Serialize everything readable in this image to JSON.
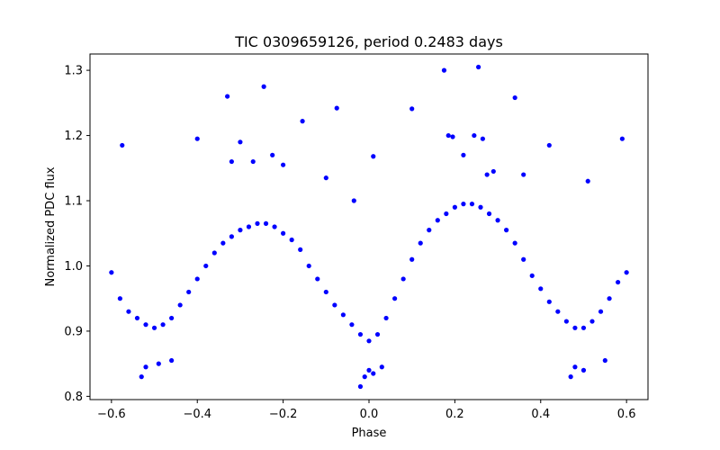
{
  "chart_data": {
    "type": "scatter",
    "title": "TIC 0309659126, period 0.2483 days",
    "xlabel": "Phase",
    "ylabel": "Normalized PDC flux",
    "xlim": [
      -0.65,
      0.65
    ],
    "ylim": [
      0.795,
      1.325
    ],
    "xticks": [
      -0.6,
      -0.4,
      -0.2,
      0.0,
      0.2,
      0.4,
      0.6
    ],
    "xtick_labels": [
      "−0.6",
      "−0.4",
      "−0.2",
      "0.0",
      "0.2",
      "0.4",
      "0.6"
    ],
    "yticks": [
      0.8,
      0.9,
      1.0,
      1.1,
      1.2,
      1.3
    ],
    "ytick_labels": [
      "0.8",
      "0.9",
      "1.0",
      "1.1",
      "1.2",
      "1.3"
    ],
    "grid": false,
    "legend": "none",
    "marker_color": "#0000ff",
    "series": [
      {
        "x": [
          -0.6,
          -0.58,
          -0.56,
          -0.54,
          -0.52,
          -0.5,
          -0.48,
          -0.46,
          -0.44,
          -0.42,
          -0.4,
          -0.38,
          -0.36,
          -0.34,
          -0.32,
          -0.3,
          -0.28,
          -0.26,
          -0.24,
          -0.22,
          -0.2,
          -0.18,
          -0.16,
          -0.14,
          -0.12,
          -0.1,
          -0.08,
          -0.06,
          -0.04,
          -0.02,
          0.0,
          0.02,
          0.04,
          0.06,
          0.08,
          0.1,
          0.12,
          0.14,
          0.16,
          0.18,
          0.2,
          0.22,
          0.24,
          0.26,
          0.28,
          0.3,
          0.32,
          0.34,
          0.36,
          0.38,
          0.4,
          0.42,
          0.44,
          0.46,
          0.48,
          0.5,
          0.52,
          0.54,
          0.56,
          0.58,
          0.6
        ],
        "y": [
          0.99,
          0.95,
          0.93,
          0.92,
          0.91,
          0.905,
          0.91,
          0.92,
          0.94,
          0.96,
          0.98,
          1.0,
          1.02,
          1.035,
          1.045,
          1.055,
          1.06,
          1.065,
          1.065,
          1.06,
          1.05,
          1.04,
          1.025,
          1.0,
          0.98,
          0.96,
          0.94,
          0.925,
          0.91,
          0.895,
          0.885,
          0.895,
          0.92,
          0.95,
          0.98,
          1.01,
          1.035,
          1.055,
          1.07,
          1.08,
          1.09,
          1.095,
          1.095,
          1.09,
          1.08,
          1.07,
          1.055,
          1.035,
          1.01,
          0.985,
          0.965,
          0.945,
          0.93,
          0.915,
          0.905,
          0.905,
          0.915,
          0.93,
          0.95,
          0.975,
          0.99
        ]
      },
      {
        "x": [
          -0.575,
          -0.4,
          -0.33,
          -0.32,
          -0.3,
          -0.27,
          -0.245,
          -0.225,
          -0.2,
          -0.155,
          -0.1,
          -0.075,
          -0.035,
          0.01,
          0.1,
          0.175,
          0.185,
          0.195,
          0.22,
          0.245,
          0.255,
          0.265,
          0.275,
          0.29,
          0.34,
          0.36,
          0.42,
          0.51,
          0.59
        ],
        "y": [
          1.185,
          1.195,
          1.26,
          1.16,
          1.19,
          1.16,
          1.275,
          1.17,
          1.155,
          1.222,
          1.135,
          1.242,
          1.1,
          1.168,
          1.241,
          1.3,
          1.2,
          1.198,
          1.17,
          1.2,
          1.305,
          1.195,
          1.14,
          1.145,
          1.258,
          1.14,
          1.185,
          1.13,
          1.195
        ]
      },
      {
        "x": [
          -0.53,
          -0.52,
          -0.49,
          -0.46,
          -0.02,
          -0.01,
          0.0,
          0.01,
          0.03,
          0.47,
          0.48,
          0.5,
          0.55
        ],
        "y": [
          0.83,
          0.845,
          0.85,
          0.855,
          0.815,
          0.83,
          0.84,
          0.835,
          0.845,
          0.83,
          0.845,
          0.84,
          0.855
        ]
      }
    ]
  }
}
